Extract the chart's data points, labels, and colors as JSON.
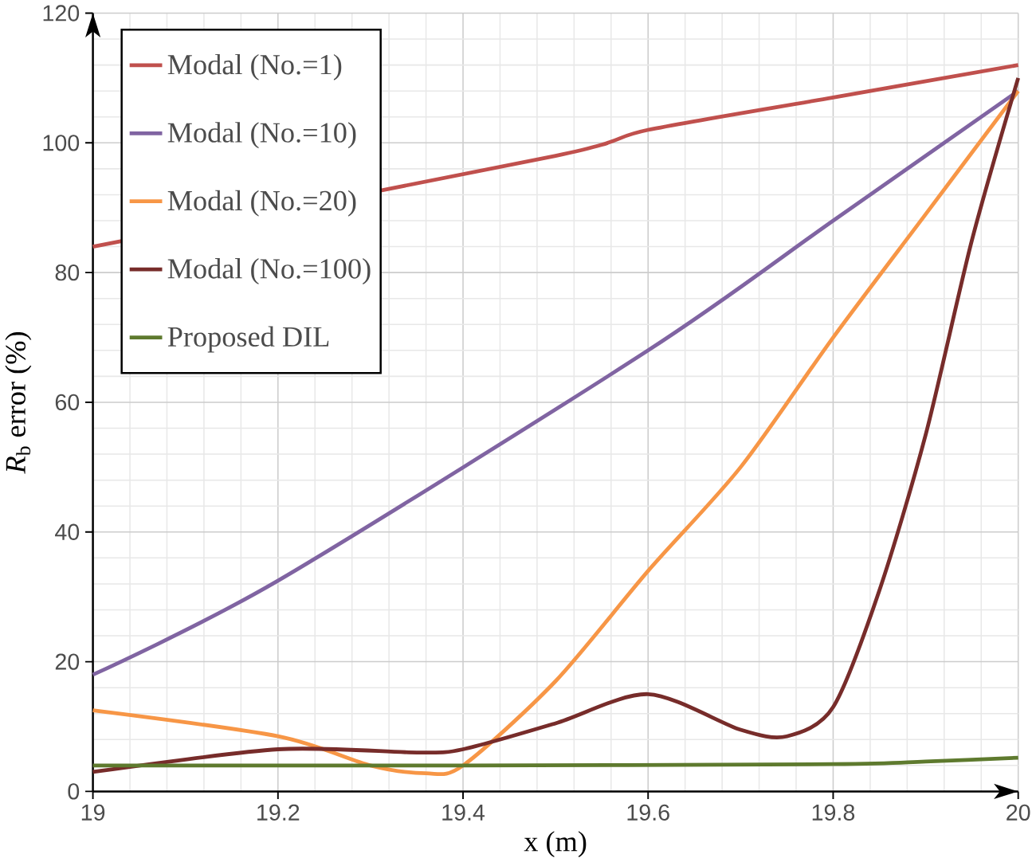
{
  "chart_data": {
    "type": "line",
    "xlabel": "x (m)",
    "ylabel": "*R*$_{b}$  error (%)",
    "xlim": [
      19,
      20
    ],
    "ylim": [
      0,
      120
    ],
    "xticks": [
      19,
      19.2,
      19.4,
      19.6,
      19.8,
      20
    ],
    "yticks": [
      0,
      20,
      40,
      60,
      80,
      100,
      120
    ],
    "grid": true,
    "legend": "top left",
    "line_style": "solid",
    "marker": "none",
    "series": [
      {
        "name": "Modal (No.=1)",
        "color": "#c0504d",
        "x": [
          19,
          19.2,
          19.4,
          19.5,
          19.6,
          19.8,
          20
        ],
        "values": [
          84,
          null,
          null,
          98,
          102,
          107,
          112
        ]
      },
      {
        "name": "Modal (No.=10)",
        "color": "#8064a2",
        "x": [
          19,
          19.2,
          19.4,
          19.6,
          19.8,
          20
        ],
        "values": [
          18,
          32.5,
          null,
          68,
          88,
          108
        ]
      },
      {
        "name": "Modal (No.=20)",
        "color": "#f79646",
        "x": [
          19,
          19.2,
          19.3,
          19.36,
          19.4,
          19.5,
          19.6,
          19.7,
          19.8,
          19.9,
          20
        ],
        "values": [
          12.5,
          8.5,
          4,
          2.8,
          4,
          17,
          34,
          50,
          70,
          89,
          108
        ]
      },
      {
        "name": "Modal (No.=100)",
        "color": "#772c2a",
        "x": [
          19,
          19.2,
          19.35,
          19.4,
          19.5,
          19.6,
          19.7,
          19.75,
          19.8,
          19.85,
          19.9,
          19.95,
          20
        ],
        "values": [
          3,
          6.5,
          6,
          6.5,
          10.5,
          15,
          9.5,
          8.5,
          13,
          31,
          55,
          85,
          110
        ]
      },
      {
        "name": "Proposed DIL",
        "color": "#5e7a2e",
        "x": [
          19,
          19.4,
          19.8,
          19.9,
          20
        ],
        "values": [
          4,
          4,
          4.2,
          4.6,
          5.2
        ]
      }
    ]
  }
}
